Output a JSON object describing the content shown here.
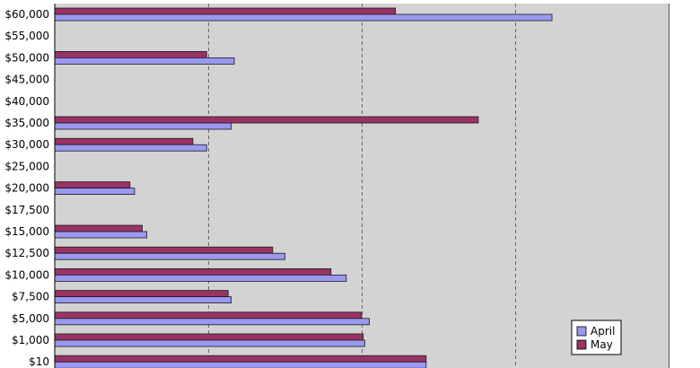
{
  "chart_data": {
    "type": "bar",
    "orientation": "horizontal",
    "categories": [
      "$60,000",
      "$55,000",
      "$50,000",
      "$45,000",
      "$40,000",
      "$35,000",
      "$30,000",
      "$25,000",
      "$20,000",
      "$17,500",
      "$15,000",
      "$12,500",
      "$10,000",
      "$7,500",
      "$5,000",
      "$1,000",
      "$10"
    ],
    "series": [
      {
        "name": "April",
        "color": "#9999f0",
        "values": [
          3.24,
          null,
          1.17,
          null,
          null,
          1.15,
          0.99,
          null,
          0.52,
          null,
          0.6,
          1.5,
          1.9,
          1.15,
          2.05,
          2.02,
          2.42
        ]
      },
      {
        "name": "May",
        "color": "#993366",
        "values": [
          2.22,
          null,
          0.99,
          null,
          null,
          2.76,
          0.9,
          null,
          0.49,
          null,
          0.57,
          1.42,
          1.8,
          1.13,
          2.0,
          2.01,
          2.42
        ]
      }
    ],
    "xlim": [
      0,
      4
    ],
    "x_tick_labels_shown": false,
    "grid": "vertical dashed",
    "plot_background": "#d3d3d3",
    "legend_position": "bottom-right",
    "title": "",
    "xlabel": "",
    "ylabel": ""
  }
}
